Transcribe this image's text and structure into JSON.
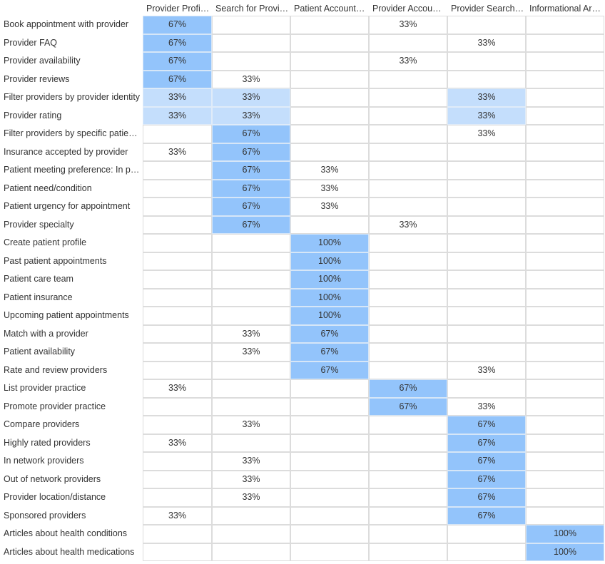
{
  "columns": [
    "Provider Profil…",
    "Search for Provi…",
    "Patient Account…",
    "Provider Accou…",
    "Provider Search…",
    "Informational Ar…"
  ],
  "rows": [
    {
      "label": "Book appointment with provider",
      "cells": [
        "67%",
        "",
        "",
        "33%",
        "",
        ""
      ],
      "shade": [
        "hi",
        "",
        "",
        "",
        "",
        ""
      ]
    },
    {
      "label": "Provider FAQ",
      "cells": [
        "67%",
        "",
        "",
        "",
        "33%",
        ""
      ],
      "shade": [
        "hi",
        "",
        "",
        "",
        "",
        ""
      ]
    },
    {
      "label": "Provider availability",
      "cells": [
        "67%",
        "",
        "",
        "33%",
        "",
        ""
      ],
      "shade": [
        "hi",
        "",
        "",
        "",
        "",
        ""
      ]
    },
    {
      "label": "Provider reviews",
      "cells": [
        "67%",
        "33%",
        "",
        "",
        "",
        ""
      ],
      "shade": [
        "hi",
        "",
        "",
        "",
        "",
        ""
      ]
    },
    {
      "label": "Filter providers by provider identity",
      "cells": [
        "33%",
        "33%",
        "",
        "",
        "33%",
        ""
      ],
      "shade": [
        "mid",
        "mid",
        "",
        "",
        "mid",
        ""
      ]
    },
    {
      "label": "Provider rating",
      "cells": [
        "33%",
        "33%",
        "",
        "",
        "33%",
        ""
      ],
      "shade": [
        "mid",
        "mid",
        "",
        "",
        "mid",
        ""
      ]
    },
    {
      "label": "Filter providers by specific patien…",
      "cells": [
        "",
        "67%",
        "",
        "",
        "33%",
        ""
      ],
      "shade": [
        "",
        "hi",
        "",
        "",
        "",
        ""
      ]
    },
    {
      "label": "Insurance accepted by provider",
      "cells": [
        "33%",
        "67%",
        "",
        "",
        "",
        ""
      ],
      "shade": [
        "",
        "hi",
        "",
        "",
        "",
        ""
      ]
    },
    {
      "label": "Patient meeting preference: In pe…",
      "cells": [
        "",
        "67%",
        "33%",
        "",
        "",
        ""
      ],
      "shade": [
        "",
        "hi",
        "",
        "",
        "",
        ""
      ]
    },
    {
      "label": "Patient need/condition",
      "cells": [
        "",
        "67%",
        "33%",
        "",
        "",
        ""
      ],
      "shade": [
        "",
        "hi",
        "",
        "",
        "",
        ""
      ]
    },
    {
      "label": "Patient urgency for appointment",
      "cells": [
        "",
        "67%",
        "33%",
        "",
        "",
        ""
      ],
      "shade": [
        "",
        "hi",
        "",
        "",
        "",
        ""
      ]
    },
    {
      "label": "Provider specialty",
      "cells": [
        "",
        "67%",
        "",
        "33%",
        "",
        ""
      ],
      "shade": [
        "",
        "hi",
        "",
        "",
        "",
        ""
      ]
    },
    {
      "label": "Create patient profile",
      "cells": [
        "",
        "",
        "100%",
        "",
        "",
        ""
      ],
      "shade": [
        "",
        "",
        "hi",
        "",
        "",
        ""
      ]
    },
    {
      "label": "Past patient appointments",
      "cells": [
        "",
        "",
        "100%",
        "",
        "",
        ""
      ],
      "shade": [
        "",
        "",
        "hi",
        "",
        "",
        ""
      ]
    },
    {
      "label": "Patient care team",
      "cells": [
        "",
        "",
        "100%",
        "",
        "",
        ""
      ],
      "shade": [
        "",
        "",
        "hi",
        "",
        "",
        ""
      ]
    },
    {
      "label": "Patient insurance",
      "cells": [
        "",
        "",
        "100%",
        "",
        "",
        ""
      ],
      "shade": [
        "",
        "",
        "hi",
        "",
        "",
        ""
      ]
    },
    {
      "label": "Upcoming patient appointments",
      "cells": [
        "",
        "",
        "100%",
        "",
        "",
        ""
      ],
      "shade": [
        "",
        "",
        "hi",
        "",
        "",
        ""
      ]
    },
    {
      "label": "Match with a provider",
      "cells": [
        "",
        "33%",
        "67%",
        "",
        "",
        ""
      ],
      "shade": [
        "",
        "",
        "hi",
        "",
        "",
        ""
      ]
    },
    {
      "label": "Patient availability",
      "cells": [
        "",
        "33%",
        "67%",
        "",
        "",
        ""
      ],
      "shade": [
        "",
        "",
        "hi",
        "",
        "",
        ""
      ]
    },
    {
      "label": "Rate and review providers",
      "cells": [
        "",
        "",
        "67%",
        "",
        "33%",
        ""
      ],
      "shade": [
        "",
        "",
        "hi",
        "",
        "",
        ""
      ]
    },
    {
      "label": "List provider practice",
      "cells": [
        "33%",
        "",
        "",
        "67%",
        "",
        ""
      ],
      "shade": [
        "",
        "",
        "",
        "hi",
        "",
        ""
      ]
    },
    {
      "label": "Promote provider practice",
      "cells": [
        "",
        "",
        "",
        "67%",
        "33%",
        ""
      ],
      "shade": [
        "",
        "",
        "",
        "hi",
        "",
        ""
      ]
    },
    {
      "label": "Compare providers",
      "cells": [
        "",
        "33%",
        "",
        "",
        "67%",
        ""
      ],
      "shade": [
        "",
        "",
        "",
        "",
        "hi",
        ""
      ]
    },
    {
      "label": "Highly rated providers",
      "cells": [
        "33%",
        "",
        "",
        "",
        "67%",
        ""
      ],
      "shade": [
        "",
        "",
        "",
        "",
        "hi",
        ""
      ]
    },
    {
      "label": "In network providers",
      "cells": [
        "",
        "33%",
        "",
        "",
        "67%",
        ""
      ],
      "shade": [
        "",
        "",
        "",
        "",
        "hi",
        ""
      ]
    },
    {
      "label": "Out of network providers",
      "cells": [
        "",
        "33%",
        "",
        "",
        "67%",
        ""
      ],
      "shade": [
        "",
        "",
        "",
        "",
        "hi",
        ""
      ]
    },
    {
      "label": "Provider location/distance",
      "cells": [
        "",
        "33%",
        "",
        "",
        "67%",
        ""
      ],
      "shade": [
        "",
        "",
        "",
        "",
        "hi",
        ""
      ]
    },
    {
      "label": "Sponsored providers",
      "cells": [
        "33%",
        "",
        "",
        "",
        "67%",
        ""
      ],
      "shade": [
        "",
        "",
        "",
        "",
        "hi",
        ""
      ]
    },
    {
      "label": "Articles about health conditions",
      "cells": [
        "",
        "",
        "",
        "",
        "",
        "100%"
      ],
      "shade": [
        "",
        "",
        "",
        "",
        "",
        "hi"
      ]
    },
    {
      "label": "Articles about health medications",
      "cells": [
        "",
        "",
        "",
        "",
        "",
        "100%"
      ],
      "shade": [
        "",
        "",
        "",
        "",
        "",
        "hi"
      ]
    }
  ],
  "colors": {
    "high": "#93c4fb",
    "mid": "#c4defc",
    "grid": "#dcdcdc",
    "text": "#333333"
  }
}
